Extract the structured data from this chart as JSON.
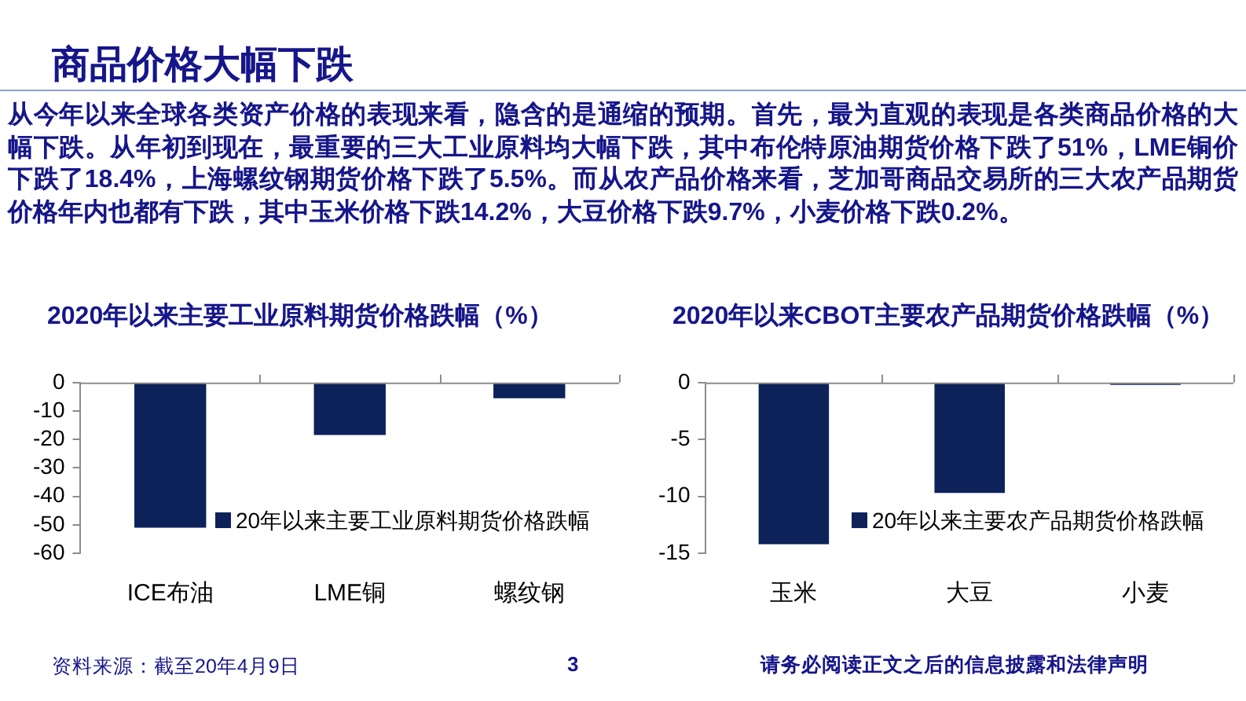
{
  "chart_data": [
    {
      "type": "other",
      "title": "商品价格大幅下跌",
      "annotations": [
        "从今年以来全球各类资产价格的表现来看，隐含的是通缩的预期。首先，最为直观的表现是各类商品价格的大幅下跌。从年初到现在，最重要的三大工业原料均大幅下跌，其中布伦特原油期货价格下跌了51%，LME铜价下跌了18.4%，上海螺纹钢期货价格下跌了5.5%。而从农产品价格来看，芝加哥商品交易所的三大农产品期货价格年内也都有下跌，其中玉米价格下跌14.2%，大豆价格下跌9.7%，小麦价格下跌0.2%。",
        "资料来源：截至20年4月9日",
        "3",
        "请务必阅读正文之后的信息披露和法律声明"
      ]
    },
    {
      "type": "bar",
      "title": "2020年以来主要工业原料期货价格跌幅（%）",
      "categories": [
        "ICE布油",
        "LME铜",
        "螺纹钢"
      ],
      "series": [
        {
          "name": "20年以来主要工业原料期货价格跌幅",
          "color": "#0c2259",
          "values": [
            -51,
            -18.4,
            -5.5
          ]
        }
      ],
      "ylim": [
        -60,
        0
      ],
      "yticks": [
        -60,
        -50,
        -40,
        -30,
        -20,
        -10,
        0
      ],
      "grid": false,
      "legend": "bottom right"
    },
    {
      "type": "bar",
      "title": "2020年以来CBOT主要农产品期货价格跌幅（%）",
      "categories": [
        "玉米",
        "大豆",
        "小麦"
      ],
      "series": [
        {
          "name": "20年以来主要农产品期货价格跌幅",
          "color": "#0c2259",
          "values": [
            -14.2,
            -9.7,
            -0.2
          ]
        }
      ],
      "ylim": [
        -15,
        0
      ],
      "yticks": [
        -15,
        -10,
        -5,
        0
      ],
      "grid": false,
      "legend": "bottom right"
    }
  ]
}
